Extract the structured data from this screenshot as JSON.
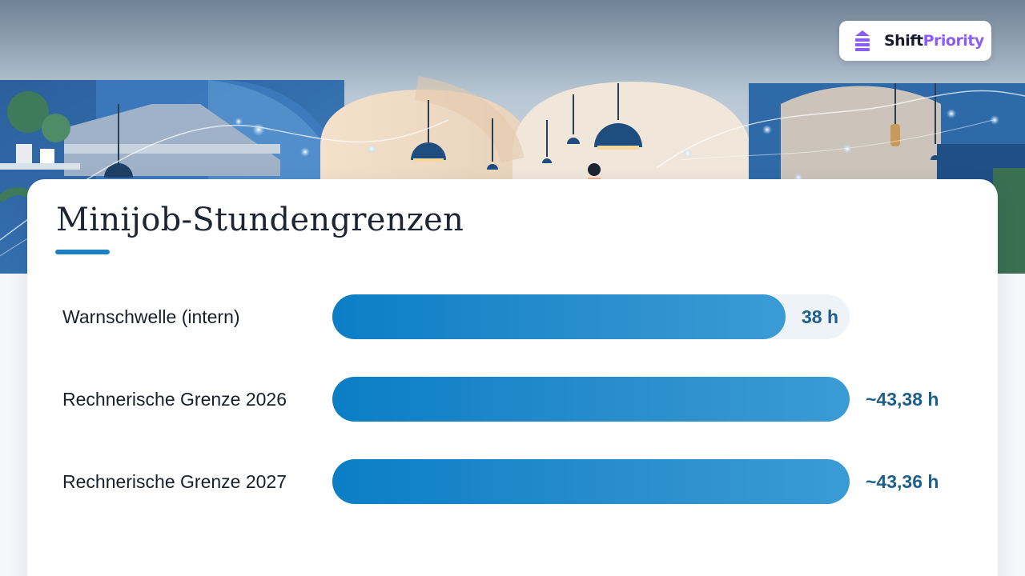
{
  "brand": {
    "name_part1": "Shift",
    "name_part2": "Priority",
    "accent": "#8b5cf6"
  },
  "chart_data": {
    "type": "bar",
    "orientation": "horizontal",
    "title": "Minijob-Stundengrenzen",
    "categories": [
      "Warnschwelle (intern)",
      "Rechnerische Grenze 2026",
      "Rechnerische Grenze 2027"
    ],
    "values": [
      38,
      43.38,
      43.36
    ],
    "value_labels": [
      "38 h",
      "~43,38 h",
      "~43,36 h"
    ],
    "xlim": [
      0,
      43.38
    ],
    "grid": false,
    "legend": "none",
    "bar_color": "#1f88c9"
  }
}
